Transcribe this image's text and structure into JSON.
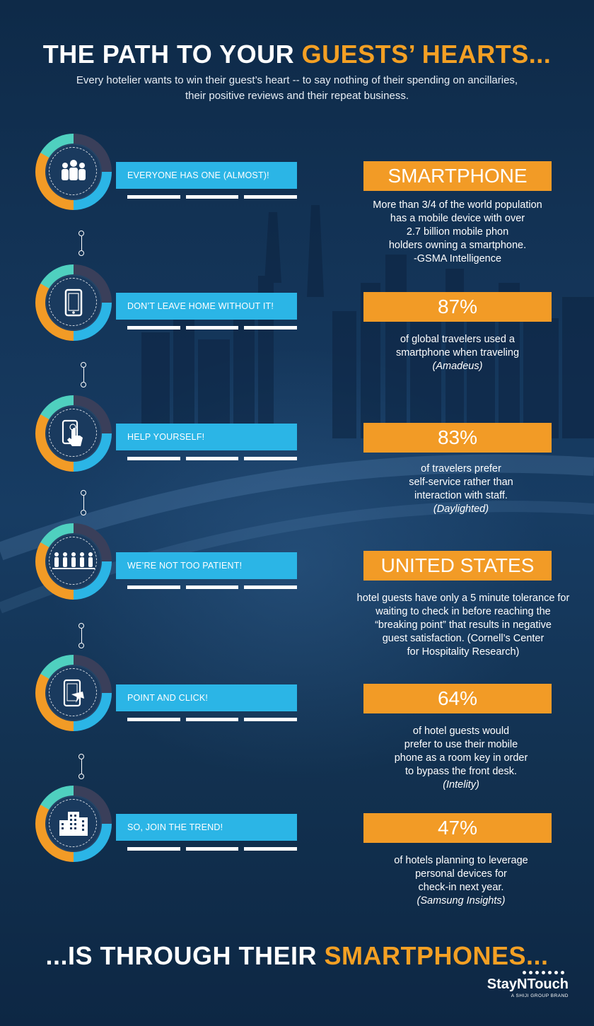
{
  "header": {
    "title_pre": "THE PATH TO YOUR ",
    "title_highlight": "GUESTS’ HEARTS...",
    "subtitle_line1": "Every hotelier wants to win their guest’s heart -- to say nothing of their spending on ancillaries,",
    "subtitle_line2": "their positive reviews and their repeat business."
  },
  "steps": [
    {
      "icon": "people-group-icon",
      "label": "EVERYONE HAS ONE (ALMOST)!",
      "stat": "SMARTPHONE",
      "lines": [
        "More than 3/4 of the world population",
        "has a mobile device with over",
        "2.7 billion mobile phon",
        "holders owning a smartphone.",
        "-GSMA Intelligence"
      ],
      "source": ""
    },
    {
      "icon": "smartphone-icon",
      "label": "DON’T LEAVE HOME WITHOUT IT!",
      "stat": "87%",
      "lines": [
        "of global travelers used a",
        "smartphone when  traveling"
      ],
      "source": "(Amadeus)"
    },
    {
      "icon": "touch-phone-icon",
      "label": "HELP YOURSELF!",
      "stat": "83%",
      "lines": [
        "of travelers prefer",
        "self-service rather than",
        "interaction with staff."
      ],
      "source": "(Daylighted)"
    },
    {
      "icon": "waiting-line-icon",
      "label": "WE’RE NOT TOO PATIENT!",
      "stat": "UNITED STATES",
      "lines": [
        "hotel guests have only a 5 minute tolerance for",
        "waiting to check in before reaching the",
        "“breaking point” that results in negative",
        "guest satisfaction. (Cornell’s Center",
        "for Hospitality Research)"
      ],
      "source": ""
    },
    {
      "icon": "phone-cursor-icon",
      "label": "POINT AND CLICK!",
      "stat": "64%",
      "lines": [
        "of hotel guests would",
        "prefer to use their mobile",
        "phone as a room key in order",
        "to bypass the front desk."
      ],
      "source": "(Intelity)"
    },
    {
      "icon": "hotel-buildings-icon",
      "label": "SO, JOIN THE TREND!",
      "stat": "47%",
      "lines": [
        "of hotels planning to leverage",
        "personal devices for",
        "check-in next year."
      ],
      "source": "(Samsung Insights)"
    }
  ],
  "closing": {
    "pre": "...IS THROUGH THEIR ",
    "highlight": "SMARTPHONES..."
  },
  "logo": {
    "name": "StayNTouch",
    "tagline": "A SHIJI GROUP BRAND"
  },
  "colors": {
    "accent_orange": "#f29b26",
    "accent_blue": "#2bb5e6",
    "accent_teal": "#4fd0bf",
    "ring_dark": "#3a3f5a",
    "background": "#143559"
  }
}
